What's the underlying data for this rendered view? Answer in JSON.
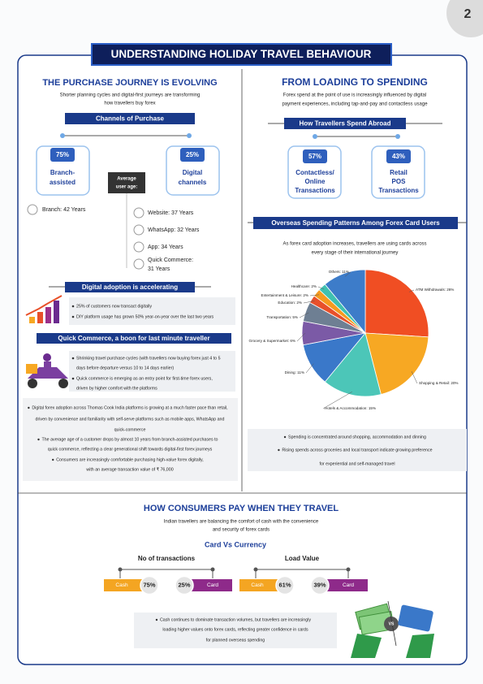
{
  "page_number": "2",
  "title": "UNDERSTANDING HOLIDAY TRAVEL BEHAVIOUR",
  "purchase": {
    "heading": "THE PURCHASE JOURNEY IS EVOLVING",
    "subtitle": [
      "Shorter planning cycles and digital-first journeys are transforming",
      "how travellers buy forex"
    ],
    "channels_title": "Channels of Purchase",
    "channels": [
      {
        "share": "75%",
        "label": [
          "Branch-",
          "assisted"
        ]
      },
      {
        "share": "25%",
        "label": [
          "Digital",
          "channels"
        ]
      }
    ],
    "avg_age_title": [
      "Average",
      "user age:"
    ],
    "ages": [
      "Branch: 42 Years",
      "Website: 37 Years",
      "WhatsApp: 32 Years",
      "App: 34 Years"
    ],
    "quick_commerce_age": [
      "Quick Commerce:",
      "31 Years"
    ],
    "digital_title": "Digital adoption is accelerating",
    "digital_points": [
      "25% of customers now transact digitally",
      "DIY platform usage has grown 50% year-on-year over the last two years"
    ],
    "qc_title": "Quick Commerce, a boon for last minute traveller",
    "qc_points": [
      "Shrinking travel purchase cycles (with travellers now buying forex just 4 to 5",
      "days before departure versus 10 to 14 days earlier)",
      "Quick commerce is emerging as an entry point for first-time forex users,",
      "driven by higher comfort with the platforms"
    ],
    "notes": [
      "Digital forex adoption across Thomas Cook India platforms is growing at a much faster pace than retail,",
      "driven by convenience and familiarity with self-serve platforms such as mobile apps, WhatsApp and",
      "quick-commerce",
      "The average age of a customer drops by almost 10 years from branch-assisted purchases to",
      "quick commerce, reflecting a clear generational shift towards digital-first forex journeys",
      "Consumers are increasingly comfortable purchasing high-value forex digitally,",
      "with an average transaction value of ₹ 76,000"
    ]
  },
  "spending": {
    "heading": "FROM LOADING TO SPENDING",
    "subtitle": [
      "Forex spend at the point of use is increasingly influenced by digital",
      "payment experiences, including tap-and-pay and contactless usage"
    ],
    "methods_title": "How Travellers Spend Abroad",
    "methods": [
      {
        "share": "57%",
        "label": [
          "Contactless/",
          "Online",
          "Transactions"
        ]
      },
      {
        "share": "43%",
        "label": [
          "Retail",
          "POS",
          "Transactions"
        ]
      }
    ],
    "pie": {
      "type": "pie",
      "title": "Overseas Spending Patterns Among Forex Card Users",
      "subtitle": [
        "As forex card adoption increases, travellers are using cards across",
        "every stage of their international journey"
      ],
      "labels": [
        "ATM Withdrawals: 26%",
        "Shopping & Retail: 20%",
        "Hotels & Accommodation: 15%",
        "Dining: 11%",
        "Grocery & Supermarket: 6%",
        "Transportation: 5%",
        "Education: 2%",
        "Entertainment & Leisure: 2%",
        "Healthcare: 2%",
        "Others: 11%"
      ],
      "values": [
        26,
        20,
        15,
        11,
        6,
        5,
        2,
        2,
        2,
        11
      ],
      "colors": [
        "#f04e23",
        "#f7a823",
        "#4cc6b8",
        "#3a78c9",
        "#7b5aa6",
        "#6e7f93",
        "#e8502a",
        "#f59a1f",
        "#3fc1b0",
        "#3d7cc9"
      ]
    },
    "notes": [
      "Spending is concentrated around  shopping, accommodation and dinning",
      "Rising spends across groceries and local transport indicate growing preference",
      "for experiential and self-managed travel"
    ]
  },
  "pay": {
    "heading": "HOW CONSUMERS PAY WHEN THEY TRAVEL",
    "subtitle": [
      "Indian travellers are balancing the comfort of cash with the convenience",
      "and security of forex cards"
    ],
    "comparison_title": "Card Vs Currency",
    "groups": [
      {
        "title": "No of transactions",
        "cash": "Cash",
        "cash_share": "75%",
        "card_share": "25%",
        "card": "Card"
      },
      {
        "title": "Load Value",
        "cash": "Cash",
        "cash_share": "61%",
        "card_share": "39%",
        "card": "Card"
      }
    ],
    "vs": "VS",
    "notes": [
      "Cash continues to dominate transaction volumes, but travellers are  increasingly",
      "loading higher values onto forex cards, reflecting greater confidence in  cards",
      "for planned overseas spending"
    ]
  }
}
